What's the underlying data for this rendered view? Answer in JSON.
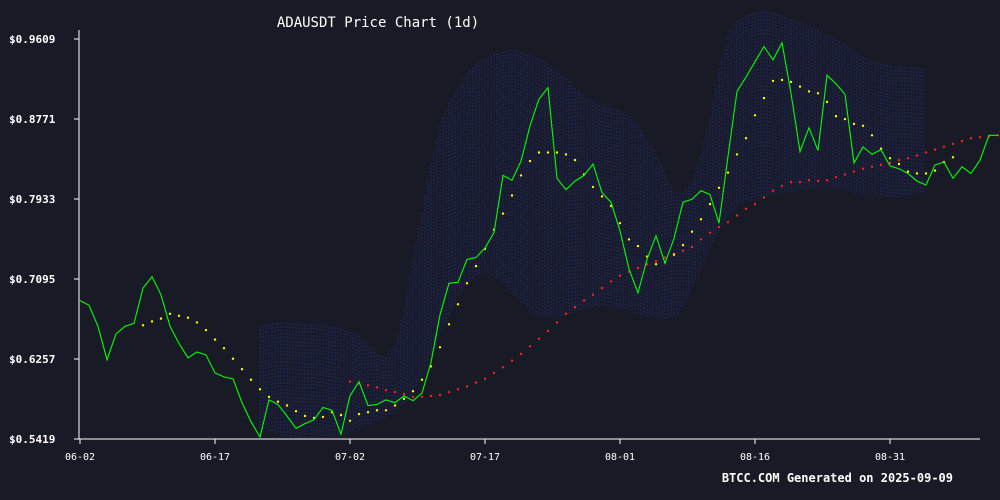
{
  "chart_data": {
    "type": "line",
    "title": "ADAUSDT Price Chart (1d)",
    "footer": "BTCC.COM Generated on 2025-09-09",
    "xlabel": "",
    "ylabel": "",
    "x_ticks": [
      {
        "day": 0,
        "label": "06-02"
      },
      {
        "day": 15,
        "label": "06-17"
      },
      {
        "day": 30,
        "label": "07-02"
      },
      {
        "day": 45,
        "label": "07-17"
      },
      {
        "day": 60,
        "label": "08-01"
      },
      {
        "day": 75,
        "label": "08-16"
      },
      {
        "day": 90,
        "label": "08-31"
      }
    ],
    "y_ticks": [
      "$0.5419",
      "$0.6257",
      "$0.7095",
      "$0.7933",
      "$0.8771",
      "$0.9609"
    ],
    "y_tick_values": [
      0.5419,
      0.6257,
      0.7095,
      0.7933,
      0.8771,
      0.9609
    ],
    "ylim": [
      0.5419,
      0.9609
    ],
    "xlim": [
      "2025-06-02",
      "2025-09-06"
    ],
    "grid": false,
    "colors": {
      "background": "#181b25",
      "price": "#00ff00",
      "short_ma": "#ffff00",
      "long_ma": "#ff2020",
      "band": "#2a2f8c",
      "axis": "#ffffff",
      "text": "#ffffff"
    },
    "series": [
      {
        "key": "price",
        "style": "line",
        "start_date": "2025-06-02",
        "values": [
          0.687,
          0.682,
          0.66,
          0.625,
          0.652,
          0.66,
          0.663,
          0.7,
          0.712,
          0.693,
          0.66,
          0.642,
          0.627,
          0.633,
          0.63,
          0.611,
          0.607,
          0.605,
          0.58,
          0.56,
          0.544,
          0.583,
          0.578,
          0.566,
          0.553,
          0.558,
          0.562,
          0.575,
          0.572,
          0.547,
          0.587,
          0.602,
          0.577,
          0.578,
          0.583,
          0.58,
          0.587,
          0.582,
          0.59,
          0.622,
          0.672,
          0.705,
          0.706,
          0.73,
          0.732,
          0.742,
          0.758,
          0.818,
          0.813,
          0.833,
          0.87,
          0.898,
          0.91,
          0.815,
          0.803,
          0.812,
          0.818,
          0.83,
          0.8,
          0.79,
          0.76,
          0.72,
          0.695,
          0.73,
          0.755,
          0.726,
          0.752,
          0.79,
          0.793,
          0.802,
          0.798,
          0.768,
          0.838,
          0.906,
          0.921,
          0.937,
          0.953,
          0.939,
          0.957,
          0.904,
          0.843,
          0.868,
          0.844,
          0.923,
          0.914,
          0.903,
          0.831,
          0.848,
          0.84,
          0.845,
          0.828,
          0.825,
          0.82,
          0.812,
          0.808,
          0.829,
          0.832,
          0.815,
          0.827,
          0.82,
          0.834,
          0.86,
          0.86
        ]
      },
      {
        "key": "short_ma",
        "style": "dots",
        "start_date": "2025-06-09",
        "values": [
          0.661,
          0.665,
          0.668,
          0.673,
          0.671,
          0.669,
          0.664,
          0.656,
          0.646,
          0.637,
          0.626,
          0.615,
          0.604,
          0.594,
          0.586,
          0.581,
          0.577,
          0.571,
          0.566,
          0.564,
          0.565,
          0.57,
          0.567,
          0.561,
          0.568,
          0.57,
          0.572,
          0.572,
          0.577,
          0.584,
          0.592,
          0.604,
          0.618,
          0.638,
          0.662,
          0.683,
          0.705,
          0.723,
          0.741,
          0.761,
          0.778,
          0.797,
          0.818,
          0.833,
          0.842,
          0.842,
          0.842,
          0.84,
          0.834,
          0.819,
          0.806,
          0.796,
          0.786,
          0.768,
          0.751,
          0.744,
          0.733,
          0.725,
          0.727,
          0.735,
          0.745,
          0.759,
          0.772,
          0.788,
          0.805,
          0.821,
          0.84,
          0.857,
          0.881,
          0.899,
          0.917,
          0.918,
          0.916,
          0.911,
          0.906,
          0.904,
          0.895,
          0.88,
          0.877,
          0.872,
          0.87,
          0.86,
          0.846,
          0.836,
          0.83,
          0.822,
          0.82,
          0.82,
          0.823,
          0.832,
          0.837
        ]
      },
      {
        "key": "long_ma",
        "style": "dots",
        "start_date": "2025-07-02",
        "values": [
          0.602,
          0.6,
          0.598,
          0.596,
          0.593,
          0.591,
          0.589,
          0.586,
          0.586,
          0.587,
          0.588,
          0.591,
          0.594,
          0.597,
          0.601,
          0.605,
          0.611,
          0.617,
          0.624,
          0.631,
          0.639,
          0.647,
          0.655,
          0.664,
          0.673,
          0.68,
          0.687,
          0.693,
          0.7,
          0.707,
          0.713,
          0.717,
          0.721,
          0.725,
          0.728,
          0.732,
          0.736,
          0.739,
          0.743,
          0.751,
          0.758,
          0.764,
          0.769,
          0.776,
          0.783,
          0.788,
          0.795,
          0.802,
          0.807,
          0.811,
          0.811,
          0.813,
          0.812,
          0.813,
          0.816,
          0.819,
          0.822,
          0.825,
          0.827,
          0.829,
          0.831,
          0.834,
          0.836,
          0.839,
          0.842,
          0.845,
          0.848,
          0.851,
          0.854,
          0.857,
          0.858,
          0.859,
          0.86,
          0.862,
          0.862
        ]
      }
    ],
    "band": {
      "start_date": "2025-06-22",
      "upper": [
        0.66,
        0.662,
        0.664,
        0.664,
        0.663,
        0.662,
        0.662,
        0.661,
        0.659,
        0.658,
        0.654,
        0.65,
        0.64,
        0.63,
        0.628,
        0.64,
        0.68,
        0.73,
        0.78,
        0.83,
        0.87,
        0.895,
        0.91,
        0.925,
        0.935,
        0.94,
        0.945,
        0.948,
        0.95,
        0.947,
        0.944,
        0.94,
        0.935,
        0.928,
        0.92,
        0.91,
        0.9,
        0.895,
        0.89,
        0.888,
        0.886,
        0.88,
        0.87,
        0.855,
        0.84,
        0.82,
        0.8,
        0.8,
        0.81,
        0.84,
        0.88,
        0.93,
        0.965,
        0.98,
        0.985,
        0.988,
        0.99,
        0.988,
        0.985,
        0.982,
        0.978,
        0.975,
        0.97,
        0.965,
        0.96,
        0.955,
        0.948,
        0.942,
        0.938,
        0.935,
        0.933,
        0.932,
        0.932,
        0.931,
        0.93
      ],
      "lower": [
        0.552,
        0.55,
        0.547,
        0.544,
        0.542,
        0.541,
        0.542,
        0.543,
        0.544,
        0.545,
        0.548,
        0.552,
        0.556,
        0.56,
        0.565,
        0.57,
        0.578,
        0.59,
        0.608,
        0.63,
        0.65,
        0.67,
        0.69,
        0.705,
        0.712,
        0.715,
        0.712,
        0.705,
        0.695,
        0.685,
        0.675,
        0.67,
        0.668,
        0.67,
        0.672,
        0.675,
        0.678,
        0.68,
        0.682,
        0.68,
        0.678,
        0.675,
        0.672,
        0.67,
        0.668,
        0.668,
        0.67,
        0.68,
        0.7,
        0.72,
        0.74,
        0.76,
        0.775,
        0.785,
        0.79,
        0.792,
        0.795,
        0.798,
        0.8,
        0.8,
        0.802,
        0.803,
        0.804,
        0.805,
        0.804,
        0.802,
        0.8,
        0.798,
        0.797,
        0.796,
        0.795,
        0.795,
        0.796,
        0.798,
        0.8
      ]
    }
  }
}
